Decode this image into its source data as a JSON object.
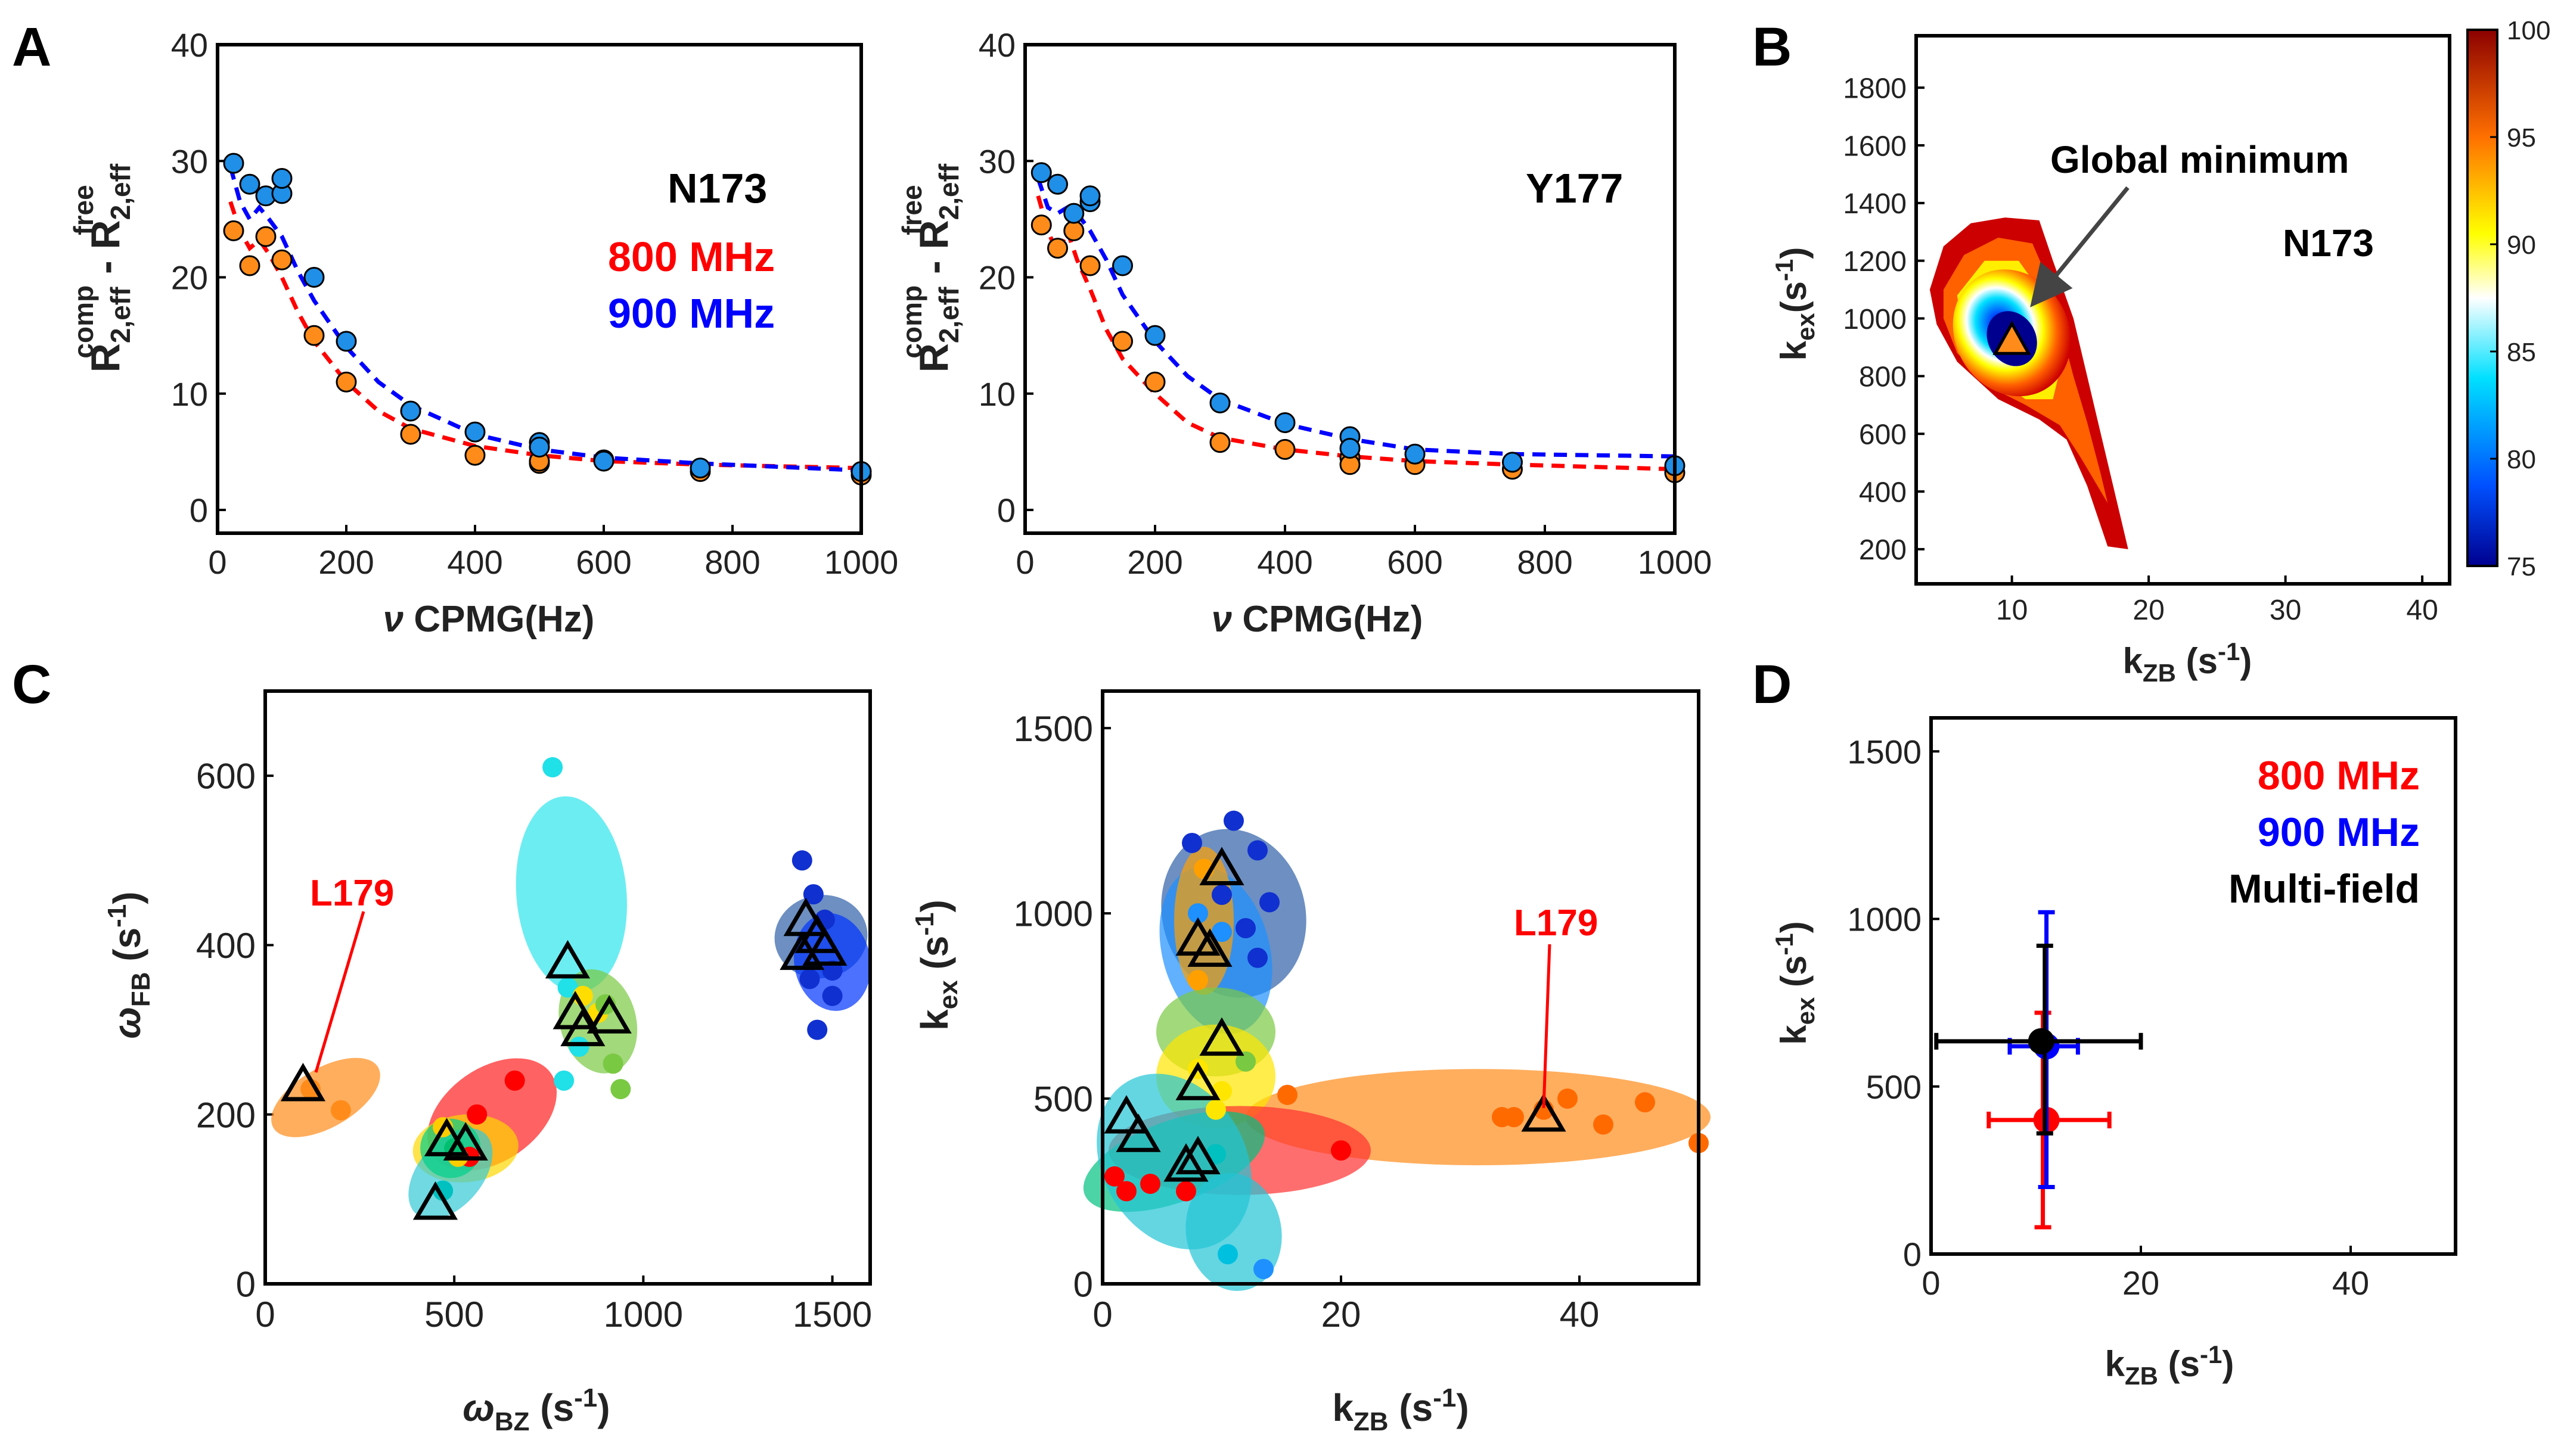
{
  "panel_labels": {
    "A": "A",
    "B": "B",
    "C": "C",
    "D": "D"
  },
  "colors": {
    "red": "#ff0000",
    "blue": "#0000ff",
    "orange": "#ff8c1a",
    "sky": "#1f8fe8",
    "black": "#000000"
  },
  "chart_data": [
    {
      "id": "A1",
      "type": "scatter",
      "title": "",
      "annotations": {
        "residue": "N173",
        "field1": "800 MHz",
        "field2": "900 MHz"
      },
      "ylabel_main": "R",
      "ylabel_sub1": "2,eff",
      "ylabel_sup1": "comp",
      "ylabel_mid": " - R",
      "ylabel_sub2": "2,eff",
      "ylabel_sup2": "free",
      "xlabel_nu": "ν",
      "xlabel_rest": " CPMG(Hz)",
      "xlim": [
        0,
        1000
      ],
      "ylim": [
        -2,
        40
      ],
      "xticks": [
        0,
        200,
        400,
        600,
        800,
        1000
      ],
      "yticks": [
        0,
        10,
        20,
        30,
        40
      ],
      "series": [
        {
          "name": "800 MHz",
          "color": "#ff8c1a",
          "x": [
            25,
            50,
            75,
            100,
            150,
            200,
            300,
            400,
            500,
            500,
            600,
            750,
            1000
          ],
          "y": [
            24,
            21,
            23.5,
            21.5,
            15,
            11,
            6.5,
            4.7,
            4.0,
            4.2,
            4.3,
            3.3,
            3.0
          ]
        },
        {
          "name": "900 MHz",
          "color": "#1f8fe8",
          "x": [
            25,
            50,
            75,
            100,
            100,
            150,
            200,
            300,
            400,
            500,
            500,
            600,
            750,
            1000
          ],
          "y": [
            29.8,
            28,
            27,
            27.2,
            28.5,
            20,
            14.5,
            8.5,
            6.7,
            5.8,
            5.4,
            4.2,
            3.6,
            3.3
          ]
        }
      ],
      "fits": [
        {
          "name": "800 MHz fit",
          "color": "#ff0000",
          "x": [
            20,
            35,
            50,
            65,
            80,
            100,
            125,
            150,
            200,
            250,
            300,
            400,
            500,
            600,
            750,
            1000
          ],
          "y": [
            26.5,
            24,
            22.5,
            23.2,
            22,
            20,
            17,
            14.5,
            11,
            8.5,
            7,
            5.5,
            4.7,
            4.2,
            3.9,
            3.6
          ]
        },
        {
          "name": "900 MHz fit",
          "color": "#0000ff",
          "x": [
            20,
            35,
            50,
            65,
            80,
            100,
            125,
            150,
            200,
            250,
            300,
            400,
            500,
            600,
            750,
            1000
          ],
          "y": [
            29.5,
            26.5,
            25,
            26,
            25,
            23.5,
            20.5,
            18,
            14,
            11,
            9,
            6.5,
            5.2,
            4.5,
            4.0,
            3.4
          ]
        }
      ]
    },
    {
      "id": "A2",
      "type": "scatter",
      "annotations": {
        "residue": "Y177"
      },
      "xlim": [
        0,
        1000
      ],
      "ylim": [
        -2,
        40
      ],
      "xticks": [
        0,
        200,
        400,
        600,
        800,
        1000
      ],
      "yticks": [
        0,
        10,
        20,
        30,
        40
      ],
      "series": [
        {
          "name": "800 MHz",
          "color": "#ff8c1a",
          "x": [
            25,
            50,
            75,
            100,
            150,
            200,
            300,
            400,
            500,
            500,
            600,
            750,
            1000
          ],
          "y": [
            24.5,
            22.5,
            24,
            21,
            14.5,
            11,
            5.8,
            5.2,
            4.5,
            3.9,
            3.9,
            3.5,
            3.2
          ]
        },
        {
          "name": "900 MHz",
          "color": "#1f8fe8",
          "x": [
            25,
            50,
            75,
            100,
            100,
            150,
            200,
            300,
            400,
            500,
            500,
            600,
            750,
            1000
          ],
          "y": [
            29,
            28,
            25.5,
            26.5,
            27,
            21,
            15,
            9.2,
            7.5,
            6.3,
            5.3,
            4.8,
            4.1,
            3.8
          ]
        }
      ],
      "fits": [
        {
          "name": "800 MHz fit",
          "color": "#ff0000",
          "x": [
            20,
            35,
            50,
            65,
            80,
            100,
            125,
            150,
            200,
            250,
            300,
            400,
            500,
            600,
            750,
            1000
          ],
          "y": [
            27,
            24,
            22,
            24,
            21.5,
            19,
            15.5,
            13,
            10,
            7.5,
            6.2,
            5.2,
            4.6,
            4.2,
            3.9,
            3.5
          ]
        },
        {
          "name": "900 MHz fit",
          "color": "#0000ff",
          "x": [
            20,
            35,
            50,
            65,
            80,
            100,
            125,
            150,
            200,
            250,
            300,
            400,
            500,
            600,
            750,
            1000
          ],
          "y": [
            28.5,
            26,
            25.5,
            26,
            25.5,
            24,
            21.5,
            18.5,
            14.5,
            11.5,
            9.5,
            7.4,
            6.1,
            5.2,
            4.8,
            4.6
          ]
        }
      ]
    },
    {
      "id": "B",
      "type": "heatmap",
      "xlabel_main": "k",
      "xlabel_sub": "ZB",
      "xlabel_unit": " (s",
      "xlabel_exp": "-1",
      "xlabel_close": ")",
      "ylabel_main": "k",
      "ylabel_sub": "ex",
      "ylabel_unit": "(s",
      "ylabel_exp": "-1",
      "ylabel_close": ")",
      "annotations": {
        "residue": "N173",
        "arrow_label": "Global minimum"
      },
      "xlim": [
        3,
        42
      ],
      "ylim": [
        80,
        1980
      ],
      "xticks": [
        10,
        20,
        30,
        40
      ],
      "yticks": [
        200,
        400,
        600,
        800,
        1000,
        1200,
        1400,
        1600,
        1800
      ],
      "colorbar": {
        "min": 75,
        "max": 100,
        "ticks": [
          75,
          80,
          85,
          90,
          95,
          100
        ]
      },
      "minimum": {
        "x": 10,
        "y": 920
      }
    },
    {
      "id": "C1",
      "type": "scatter",
      "xlabel_main": "ω",
      "xlabel_sub": "BZ",
      "xlabel_unit": " (s",
      "xlabel_exp": "-1",
      "xlabel_close": ")",
      "ylabel_main": "ω",
      "ylabel_sub": "FB",
      "ylabel_unit": " (s",
      "ylabel_exp": "-1",
      "ylabel_close": ")",
      "annotations": {
        "label": "L179"
      },
      "xlim": [
        0,
        1600
      ],
      "ylim": [
        0,
        700
      ],
      "xticks": [
        0,
        500,
        1000,
        1500
      ],
      "yticks": [
        0,
        200,
        400,
        600
      ],
      "ellipses": [
        {
          "cx": 160,
          "cy": 220,
          "rx": 160,
          "ry": 35,
          "rot": -30,
          "color": "#ff8c1a"
        },
        {
          "cx": 600,
          "cy": 200,
          "rx": 190,
          "ry": 55,
          "rot": -35,
          "color": "#ff1f1f"
        },
        {
          "cx": 530,
          "cy": 160,
          "rx": 140,
          "ry": 40,
          "rot": -5,
          "color": "#ffd700"
        },
        {
          "cx": 490,
          "cy": 130,
          "rx": 140,
          "ry": 38,
          "rot": -50,
          "color": "#33c9d6"
        },
        {
          "cx": 490,
          "cy": 160,
          "rx": 80,
          "ry": 35,
          "rot": 10,
          "color": "#00d08a"
        },
        {
          "cx": 810,
          "cy": 460,
          "rx": 260,
          "ry": 65,
          "rot": 85,
          "color": "#2ee6ec"
        },
        {
          "cx": 880,
          "cy": 310,
          "rx": 140,
          "ry": 45,
          "rot": 75,
          "color": "#7ac943"
        },
        {
          "cx": 1470,
          "cy": 410,
          "rx": 110,
          "ry": 55,
          "rot": 80,
          "color": "#2f5fa8"
        },
        {
          "cx": 1500,
          "cy": 380,
          "rx": 130,
          "ry": 45,
          "rot": 80,
          "color": "#0033ff"
        }
      ],
      "points": [
        {
          "x": 200,
          "y": 205,
          "color": "#ff8c1a"
        },
        {
          "x": 120,
          "y": 230,
          "color": "#ff8c1a"
        },
        {
          "x": 660,
          "y": 240,
          "color": "#ff0000"
        },
        {
          "x": 560,
          "y": 200,
          "color": "#ff0000"
        },
        {
          "x": 540,
          "y": 150,
          "color": "#ff0000"
        },
        {
          "x": 470,
          "y": 185,
          "color": "#ffcc00"
        },
        {
          "x": 510,
          "y": 150,
          "color": "#ffcc00"
        },
        {
          "x": 470,
          "y": 110,
          "color": "#00c0c0"
        },
        {
          "x": 500,
          "y": 160,
          "color": "#00c070"
        },
        {
          "x": 760,
          "y": 610,
          "color": "#20e0e8"
        },
        {
          "x": 800,
          "y": 350,
          "color": "#20e0e8"
        },
        {
          "x": 790,
          "y": 240,
          "color": "#20e0e8"
        },
        {
          "x": 830,
          "y": 280,
          "color": "#20e0e8"
        },
        {
          "x": 840,
          "y": 340,
          "color": "#ffdd00"
        },
        {
          "x": 880,
          "y": 320,
          "color": "#ffdd00"
        },
        {
          "x": 920,
          "y": 260,
          "color": "#7ac943"
        },
        {
          "x": 900,
          "y": 330,
          "color": "#7ac943"
        },
        {
          "x": 940,
          "y": 230,
          "color": "#7ac943"
        },
        {
          "x": 1420,
          "y": 500,
          "color": "#1030d0"
        },
        {
          "x": 1450,
          "y": 460,
          "color": "#1030d0"
        },
        {
          "x": 1480,
          "y": 430,
          "color": "#1030d0"
        },
        {
          "x": 1440,
          "y": 360,
          "color": "#1030d0"
        },
        {
          "x": 1500,
          "y": 370,
          "color": "#1030d0"
        },
        {
          "x": 1460,
          "y": 300,
          "color": "#1030d0"
        },
        {
          "x": 1500,
          "y": 340,
          "color": "#1030d0"
        }
      ],
      "triangles": [
        {
          "x": 100,
          "y": 235
        },
        {
          "x": 480,
          "y": 170
        },
        {
          "x": 530,
          "y": 165
        },
        {
          "x": 450,
          "y": 95
        },
        {
          "x": 800,
          "y": 380
        },
        {
          "x": 820,
          "y": 320
        },
        {
          "x": 840,
          "y": 300
        },
        {
          "x": 910,
          "y": 315
        },
        {
          "x": 1430,
          "y": 430
        },
        {
          "x": 1460,
          "y": 410
        },
        {
          "x": 1420,
          "y": 390
        },
        {
          "x": 1480,
          "y": 395
        }
      ]
    },
    {
      "id": "C2",
      "type": "scatter",
      "xlabel_main": "k",
      "xlabel_sub": "ZB",
      "xlabel_unit": " (s",
      "xlabel_exp": "-1",
      "xlabel_close": ")",
      "ylabel_main": "k",
      "ylabel_sub": "ex",
      "ylabel_unit": " (s",
      "ylabel_exp": "-1",
      "ylabel_close": ")",
      "annotations": {
        "label": "L179"
      },
      "xlim": [
        0,
        50
      ],
      "ylim": [
        0,
        1600
      ],
      "xticks": [
        0,
        20,
        40
      ],
      "yticks": [
        0,
        500,
        1000,
        1500
      ],
      "ellipses": [
        {
          "cx": 31.5,
          "cy": 450,
          "rx": 19.5,
          "ry": 130,
          "rot": 0,
          "color": "#ff8c1a"
        },
        {
          "cx": 11,
          "cy": 1000,
          "rx": 6,
          "ry": 230,
          "rot": -15,
          "color": "#2f5fa8"
        },
        {
          "cx": 9.5,
          "cy": 900,
          "rx": 4.5,
          "ry": 230,
          "rot": -15,
          "color": "#1e90ff"
        },
        {
          "cx": 8.5,
          "cy": 980,
          "rx": 2.5,
          "ry": 200,
          "rot": 0,
          "color": "#ffa000"
        },
        {
          "cx": 9.5,
          "cy": 680,
          "rx": 5,
          "ry": 120,
          "rot": 0,
          "color": "#7ac943"
        },
        {
          "cx": 9.5,
          "cy": 560,
          "rx": 5,
          "ry": 140,
          "rot": 0,
          "color": "#ffe600"
        },
        {
          "cx": 11.5,
          "cy": 360,
          "rx": 11,
          "ry": 120,
          "rot": 0,
          "color": "#ff3030"
        },
        {
          "cx": 6,
          "cy": 330,
          "rx": 8,
          "ry": 110,
          "rot": -20,
          "color": "#00c080"
        },
        {
          "cx": 6,
          "cy": 330,
          "rx": 6,
          "ry": 250,
          "rot": -30,
          "color": "#22c5d6"
        },
        {
          "cx": 11,
          "cy": 140,
          "rx": 4,
          "ry": 160,
          "rot": -10,
          "color": "#22c5d6"
        }
      ],
      "points": [
        {
          "x": 50,
          "y": 380,
          "color": "#ff6a00"
        },
        {
          "x": 45.5,
          "y": 490,
          "color": "#ff6a00"
        },
        {
          "x": 39,
          "y": 500,
          "color": "#ff6a00"
        },
        {
          "x": 37,
          "y": 470,
          "color": "#ff6a00"
        },
        {
          "x": 34.5,
          "y": 450,
          "color": "#ff6a00"
        },
        {
          "x": 33.5,
          "y": 450,
          "color": "#ff6a00"
        },
        {
          "x": 15.5,
          "y": 510,
          "color": "#ff6a00"
        },
        {
          "x": 42,
          "y": 430,
          "color": "#ff6a00"
        },
        {
          "x": 11,
          "y": 1250,
          "color": "#1030d0"
        },
        {
          "x": 13,
          "y": 1170,
          "color": "#1030d0"
        },
        {
          "x": 7.5,
          "y": 1190,
          "color": "#1030d0"
        },
        {
          "x": 14,
          "y": 1030,
          "color": "#1030d0"
        },
        {
          "x": 13,
          "y": 880,
          "color": "#1030d0"
        },
        {
          "x": 12,
          "y": 960,
          "color": "#1030d0"
        },
        {
          "x": 10,
          "y": 1050,
          "color": "#1030d0"
        },
        {
          "x": 8,
          "y": 1000,
          "color": "#1e90ff"
        },
        {
          "x": 10,
          "y": 950,
          "color": "#1e90ff"
        },
        {
          "x": 8.5,
          "y": 1120,
          "color": "#ffa000"
        },
        {
          "x": 8,
          "y": 820,
          "color": "#ffa000"
        },
        {
          "x": 8,
          "y": 580,
          "color": "#ffe600"
        },
        {
          "x": 9.5,
          "y": 470,
          "color": "#ffe600"
        },
        {
          "x": 10,
          "y": 520,
          "color": "#ffe600"
        },
        {
          "x": 12,
          "y": 600,
          "color": "#7ac943"
        },
        {
          "x": 20,
          "y": 360,
          "color": "#ff0000"
        },
        {
          "x": 1,
          "y": 290,
          "color": "#ff0000"
        },
        {
          "x": 2,
          "y": 250,
          "color": "#ff0000"
        },
        {
          "x": 4,
          "y": 270,
          "color": "#ff0000"
        },
        {
          "x": 7,
          "y": 250,
          "color": "#ff0000"
        },
        {
          "x": 9.5,
          "y": 350,
          "color": "#00c0c0"
        },
        {
          "x": 13.5,
          "y": 40,
          "color": "#1e90ff"
        },
        {
          "x": 10.5,
          "y": 80,
          "color": "#00c0e0"
        }
      ],
      "triangles": [
        {
          "x": 10,
          "y": 1120
        },
        {
          "x": 8,
          "y": 930
        },
        {
          "x": 9,
          "y": 900
        },
        {
          "x": 10,
          "y": 660
        },
        {
          "x": 8,
          "y": 540
        },
        {
          "x": 2,
          "y": 450
        },
        {
          "x": 3,
          "y": 400
        },
        {
          "x": 8,
          "y": 340
        },
        {
          "x": 7,
          "y": 320
        },
        {
          "x": 37,
          "y": 455
        }
      ]
    },
    {
      "id": "D",
      "type": "scatter",
      "xlabel_main": "k",
      "xlabel_sub": "ZB",
      "xlabel_unit": " (s",
      "xlabel_exp": "-1",
      "xlabel_close": ")",
      "ylabel_main": "k",
      "ylabel_sub": "ex",
      "ylabel_unit": " (s",
      "ylabel_exp": "-1",
      "ylabel_close": ")",
      "legend": [
        "800 MHz",
        "900 MHz",
        "Multi-field"
      ],
      "legend_colors": [
        "#ff0000",
        "#0000ff",
        "#000000"
      ],
      "xlim": [
        0,
        50
      ],
      "ylim": [
        0,
        1600
      ],
      "xticks": [
        0,
        20,
        40
      ],
      "yticks": [
        0,
        500,
        1000,
        1500
      ],
      "points": [
        {
          "name": "800 MHz",
          "x": 11,
          "y": 400,
          "xerr": [
            5.5,
            17
          ],
          "yerr": [
            80,
            720
          ],
          "color": "#ff0000"
        },
        {
          "name": "900 MHz",
          "x": 11,
          "y": 620,
          "xerr": [
            7.5,
            14
          ],
          "yerr": [
            200,
            1020
          ],
          "color": "#0000ff"
        },
        {
          "name": "Multi-field",
          "x": 10.5,
          "y": 635,
          "xerr": [
            0.5,
            20
          ],
          "yerr": [
            360,
            920
          ],
          "color": "#000000"
        }
      ]
    }
  ]
}
